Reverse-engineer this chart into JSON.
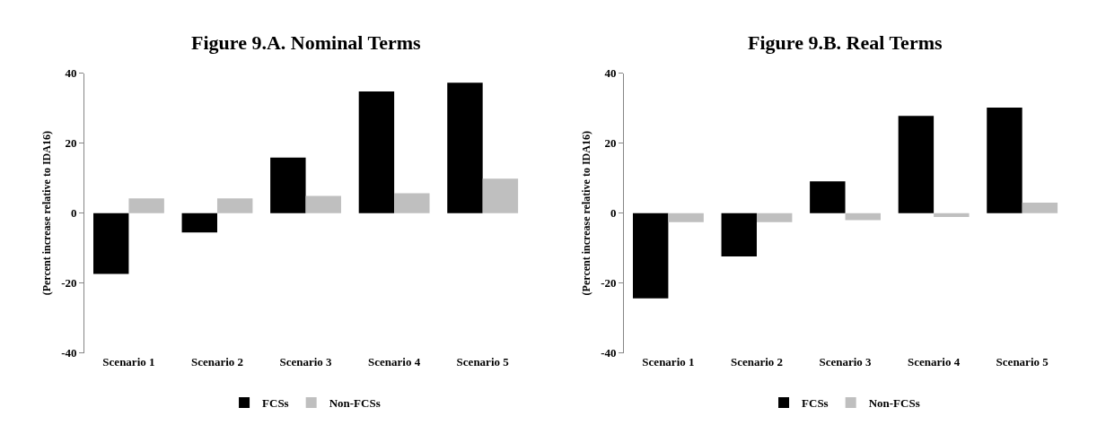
{
  "chart_data": [
    {
      "type": "bar",
      "title": "Figure 9.A. Nominal Terms",
      "ylabel": "(Percent increase relative to IDA16)",
      "categories": [
        "Scenario 1",
        "Scenario 2",
        "Scenario 3",
        "Scenario 4",
        "Scenario 5"
      ],
      "series": [
        {
          "name": "FCSs",
          "color": "#000000",
          "values": [
            -17.4,
            -5.5,
            15.9,
            34.8,
            37.3
          ]
        },
        {
          "name": "Non-FCSs",
          "color": "#bfbfbf",
          "values": [
            4.2,
            4.2,
            4.9,
            5.7,
            9.9
          ]
        }
      ],
      "ylim": [
        -40,
        40
      ],
      "yticks": [
        -40,
        -20,
        0,
        20,
        40
      ],
      "grid": false,
      "legend": "bottom"
    },
    {
      "type": "bar",
      "title": "Figure 9.B. Real Terms",
      "ylabel": "(Percent increase relative to IDA16)",
      "categories": [
        "Scenario 1",
        "Scenario 2",
        "Scenario 3",
        "Scenario 4",
        "Scenario 5"
      ],
      "series": [
        {
          "name": "FCSs",
          "color": "#000000",
          "values": [
            -24.4,
            -12.4,
            9.1,
            27.8,
            30.2
          ]
        },
        {
          "name": "Non-FCSs",
          "color": "#bfbfbf",
          "values": [
            -2.6,
            -2.6,
            -2.0,
            -1.1,
            3.0
          ]
        }
      ],
      "ylim": [
        -40,
        40
      ],
      "yticks": [
        -40,
        -20,
        0,
        20,
        40
      ],
      "grid": false,
      "legend": "bottom"
    }
  ]
}
